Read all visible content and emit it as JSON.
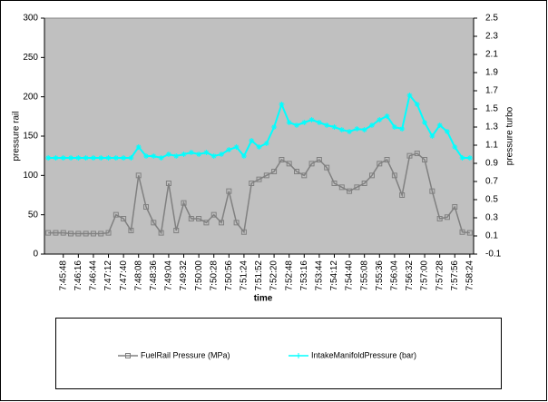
{
  "chart_data": {
    "type": "line",
    "x_label": "time",
    "y_label": "pressure rail",
    "y2_label": "pressure turbo",
    "categories": [
      null,
      null,
      "7:45:48",
      null,
      "7:46:16",
      null,
      "7:46:44",
      null,
      "7:47:12",
      null,
      "7:47:40",
      null,
      "7:48:08",
      null,
      "7:48:36",
      null,
      "7:49:04",
      null,
      "7:49:32",
      null,
      "7:50:00",
      null,
      "7:50:28",
      null,
      "7:50:56",
      null,
      "7:51:24",
      null,
      "7:51:52",
      null,
      "7:52:20",
      null,
      "7:52:48",
      null,
      "7:53:16",
      null,
      "7:53:44",
      null,
      "7:54:12",
      null,
      "7:54:40",
      null,
      "7:55:08",
      null,
      "7:55:36",
      null,
      "7:56:04",
      null,
      "7:56:32",
      null,
      "7:57:00",
      null,
      "7:57:28",
      null,
      "7:57:56",
      null,
      "7:58:24"
    ],
    "series": [
      {
        "name": "FuelRail Pressure (MPa)",
        "color": "#808080",
        "axis": "y",
        "values": [
          27,
          27,
          27,
          26,
          26,
          26,
          26,
          26,
          27,
          50,
          45,
          30,
          100,
          60,
          40,
          27,
          90,
          30,
          65,
          45,
          45,
          40,
          50,
          40,
          80,
          40,
          28,
          90,
          95,
          100,
          105,
          120,
          115,
          105,
          100,
          115,
          120,
          110,
          90,
          85,
          80,
          85,
          90,
          100,
          115,
          120,
          100,
          75,
          125,
          128,
          120,
          80,
          45,
          47,
          60,
          28,
          27
        ]
      },
      {
        "name": "IntakeManifoldPressure (bar)",
        "color": "#00ffff",
        "axis": "y2",
        "values": [
          0.96,
          0.96,
          0.96,
          0.96,
          0.96,
          0.96,
          0.96,
          0.96,
          0.96,
          0.96,
          0.96,
          0.96,
          1.08,
          0.98,
          0.98,
          0.96,
          1.0,
          0.98,
          1.0,
          1.02,
          1.0,
          1.02,
          0.98,
          1.0,
          1.05,
          1.08,
          0.98,
          1.15,
          1.08,
          1.12,
          1.3,
          1.55,
          1.35,
          1.32,
          1.35,
          1.38,
          1.35,
          1.32,
          1.3,
          1.27,
          1.25,
          1.28,
          1.27,
          1.32,
          1.38,
          1.42,
          1.3,
          1.28,
          1.65,
          1.55,
          1.35,
          1.2,
          1.32,
          1.25,
          1.08,
          0.96,
          0.96
        ]
      }
    ],
    "ylim": [
      0,
      300
    ],
    "yticks": [
      0,
      50,
      100,
      150,
      200,
      250,
      300
    ],
    "y2lim": [
      -0.1,
      2.5
    ],
    "y2ticks": [
      -0.1,
      0.1,
      0.3,
      0.5,
      0.7,
      0.9,
      1.1,
      1.3,
      1.5,
      1.7,
      1.9,
      2.1,
      2.3,
      2.5
    ],
    "legend": "bottom",
    "plot_background": "#c0c0c0"
  }
}
